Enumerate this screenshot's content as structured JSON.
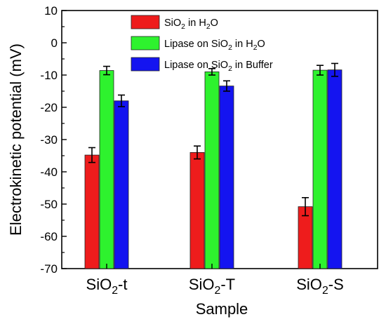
{
  "chart_data": {
    "type": "bar",
    "xlabel": "Sample",
    "ylabel": "Electrokinetic potential (mV)",
    "ylim": [
      -70,
      10
    ],
    "yticks": [
      "10",
      "0",
      "-10",
      "-20",
      "-30",
      "-40",
      "-50",
      "-60",
      "-70"
    ],
    "categories": [
      {
        "main": "SiO",
        "sub": "2",
        "suffix": "-t"
      },
      {
        "main": "SiO",
        "sub": "2",
        "suffix": "-T"
      },
      {
        "main": "SiO",
        "sub": "2",
        "suffix": "-S"
      }
    ],
    "series": [
      {
        "name": "SiO2 in H2O",
        "legend_parts": [
          [
            "SiO",
            false
          ],
          [
            "2",
            true
          ],
          [
            " in H",
            false
          ],
          [
            "2",
            true
          ],
          [
            "O",
            false
          ]
        ],
        "color": "#ee1c1c",
        "values": [
          -34.8,
          -34.0,
          -50.8
        ],
        "errors": [
          2.3,
          2.0,
          2.8
        ]
      },
      {
        "name": "Lipase on SiO2 in H2O",
        "legend_parts": [
          [
            "Lipase on SiO",
            false
          ],
          [
            "2",
            true
          ],
          [
            " in H",
            false
          ],
          [
            "2",
            true
          ],
          [
            "O",
            false
          ]
        ],
        "color": "#2ef22e",
        "values": [
          -8.6,
          -9.0,
          -8.5
        ],
        "errors": [
          1.3,
          1.0,
          1.5
        ]
      },
      {
        "name": "Lipase on SiO2 in Buffer",
        "legend_parts": [
          [
            "Lipase on SiO",
            false
          ],
          [
            "2",
            true
          ],
          [
            " in Buffer",
            false
          ]
        ],
        "color": "#1414f0",
        "values": [
          -18.0,
          -13.4,
          -8.4
        ],
        "errors": [
          1.8,
          1.6,
          2.0
        ]
      }
    ],
    "legend_position": "top-center",
    "grid": false
  }
}
